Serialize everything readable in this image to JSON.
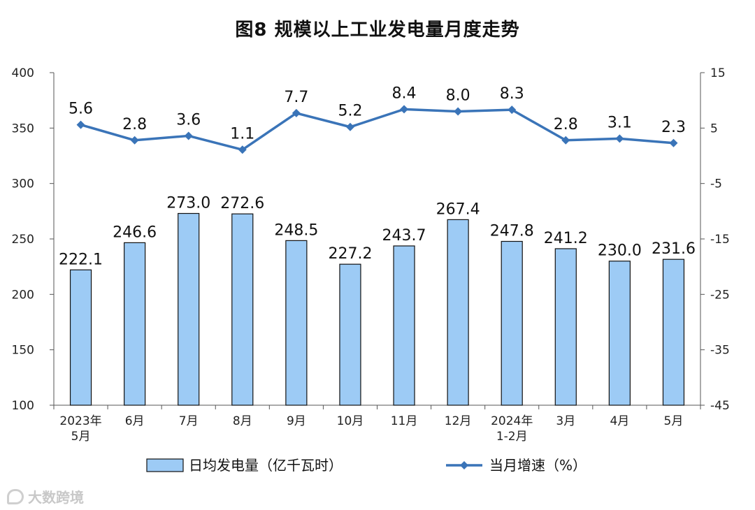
{
  "chart_data": {
    "type": "bar+line",
    "title": "图8  规模以上工业发电量月度走势",
    "categories": [
      "2023年\n5月",
      "6月",
      "7月",
      "8月",
      "9月",
      "10月",
      "11月",
      "12月",
      "2024年\n1-2月",
      "3月",
      "4月",
      "5月"
    ],
    "series": [
      {
        "name": "日均发电量（亿千瓦时）",
        "type": "bar",
        "axis": "left",
        "values": [
          222.1,
          246.6,
          273.0,
          272.6,
          248.5,
          227.2,
          243.7,
          267.4,
          247.8,
          241.2,
          230.0,
          231.6
        ],
        "color": "#9DCBF5",
        "labels": [
          "222.1",
          "246.6",
          "273.0",
          "272.6",
          "248.5",
          "227.2",
          "243.7",
          "267.4",
          "247.8",
          "241.2",
          "230.0",
          "231.6"
        ]
      },
      {
        "name": "当月增速（%）",
        "type": "line",
        "axis": "right",
        "values": [
          5.6,
          2.8,
          3.6,
          1.1,
          7.7,
          5.2,
          8.4,
          8.0,
          8.3,
          2.8,
          3.1,
          2.3
        ],
        "color": "#3A74B8",
        "labels": [
          "5.6",
          "2.8",
          "3.6",
          "1.1",
          "7.7",
          "5.2",
          "8.4",
          "8.0",
          "8.3",
          "2.8",
          "3.1",
          "2.3"
        ]
      }
    ],
    "y_left": {
      "min": 100,
      "max": 400,
      "ticks": [
        100,
        150,
        200,
        250,
        300,
        350,
        400
      ]
    },
    "y_right": {
      "min": -45,
      "max": 15,
      "ticks": [
        -45,
        -35,
        -25,
        -15,
        -5,
        5,
        15
      ]
    },
    "grid": false,
    "legend_position": "bottom"
  },
  "watermark": {
    "text": "大数跨境"
  }
}
